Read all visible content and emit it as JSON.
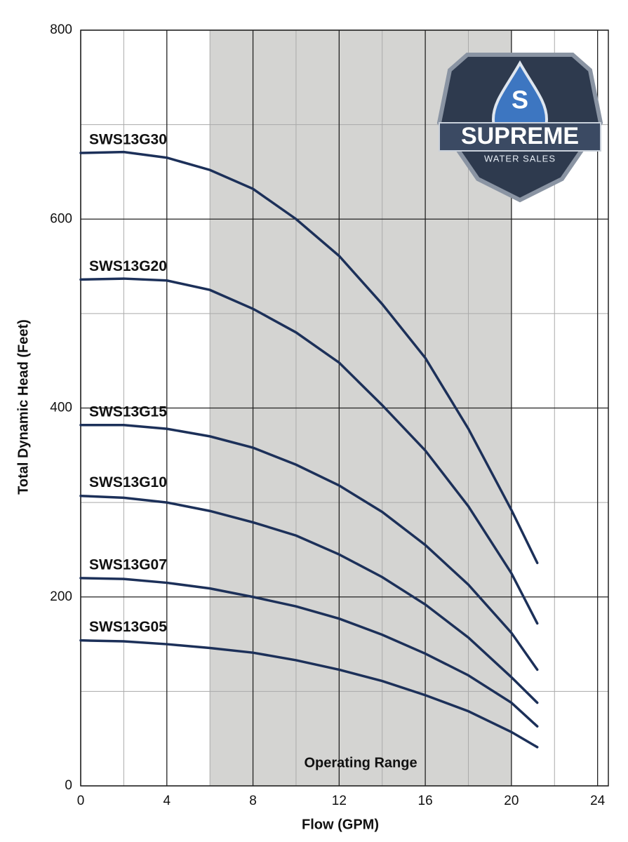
{
  "chart_data": {
    "type": "line",
    "xlabel": "Flow (GPM)",
    "ylabel": "Total Dynamic Head (Feet)",
    "annotation": "Operating Range",
    "operating_range": [
      6,
      20
    ],
    "logo": {
      "title": "SUPREME",
      "subtitle": "WATER SALES",
      "letter": "S"
    },
    "x": [
      0,
      2,
      4,
      6,
      8,
      10,
      12,
      14,
      16,
      18,
      20,
      21.2
    ],
    "series": [
      {
        "name": "SWS13G30",
        "color": "#1c3059",
        "values": [
          670,
          671,
          665,
          652,
          632,
          600,
          561,
          510,
          453,
          378,
          292,
          236
        ]
      },
      {
        "name": "SWS13G20",
        "color": "#1c3059",
        "values": [
          536,
          537,
          535,
          525,
          505,
          480,
          448,
          403,
          355,
          296,
          225,
          172
        ]
      },
      {
        "name": "SWS13G15",
        "color": "#1c3059",
        "values": [
          382,
          382,
          378,
          370,
          358,
          340,
          318,
          290,
          255,
          213,
          162,
          123
        ]
      },
      {
        "name": "SWS13G10",
        "color": "#1c3059",
        "values": [
          307,
          305,
          300,
          291,
          279,
          265,
          245,
          221,
          192,
          157,
          115,
          88
        ]
      },
      {
        "name": "SWS13G07",
        "color": "#1c3059",
        "values": [
          220,
          219,
          215,
          209,
          200,
          190,
          177,
          160,
          140,
          117,
          88,
          63
        ]
      },
      {
        "name": "SWS13G05",
        "color": "#1c3059",
        "values": [
          154,
          153,
          150,
          146,
          141,
          133,
          123,
          111,
          96,
          79,
          57,
          41
        ]
      }
    ],
    "xlim": [
      0,
      24.5
    ],
    "ylim": [
      0,
      800
    ],
    "xticks": [
      0,
      4,
      8,
      12,
      16,
      20,
      24
    ],
    "yticks": [
      0,
      200,
      400,
      600,
      800
    ],
    "xminor": [
      2,
      6,
      10,
      14,
      18,
      22
    ],
    "yminor": [
      100,
      300,
      500,
      700
    ],
    "grid": true
  }
}
